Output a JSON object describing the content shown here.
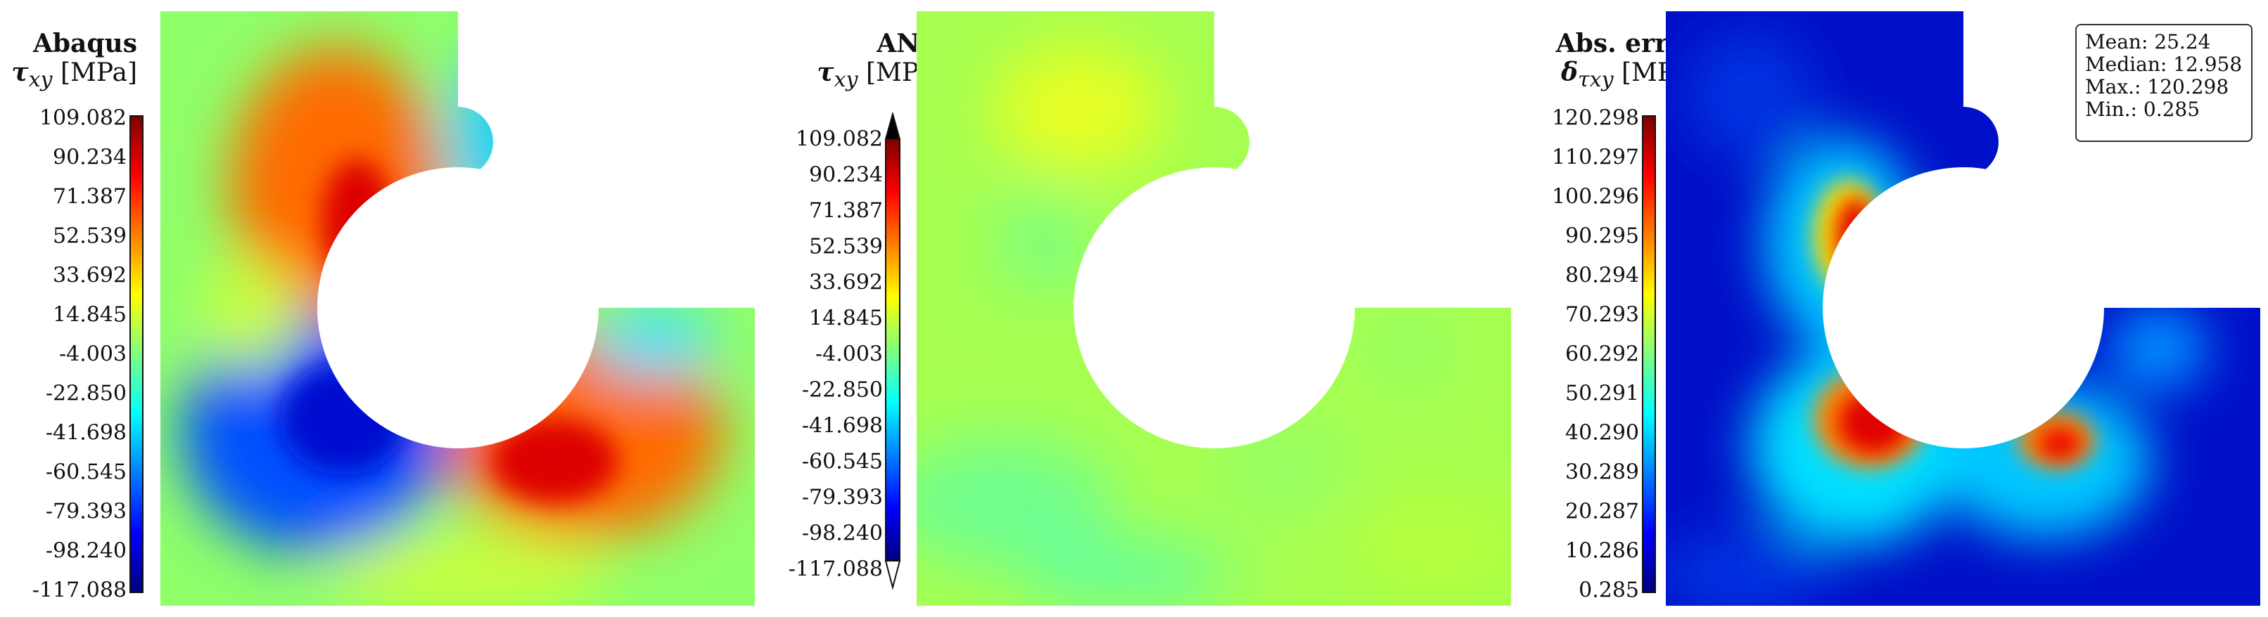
{
  "colors": {
    "jet": [
      "#00007f",
      "#0000ff",
      "#007fff",
      "#00ffff",
      "#7fff7f",
      "#ffff00",
      "#ff7f00",
      "#ff0000",
      "#7f0000"
    ]
  },
  "panels": [
    {
      "id": "abaqus",
      "title_line1": "Abaqus",
      "title_var": "τ",
      "title_sub": "xy",
      "title_unit": "[MPa]",
      "ticks": [
        "109.082",
        "90.234",
        "71.387",
        "52.539",
        "33.692",
        "14.845",
        "-4.003",
        "-22.850",
        "-41.698",
        "-60.545",
        "-79.393",
        "-98.240",
        "-117.088"
      ]
    },
    {
      "id": "ann",
      "title_line1": "ANN",
      "title_var": "τ",
      "title_sub": "xy",
      "title_unit": "[MPa]",
      "ticks": [
        "109.082",
        "90.234",
        "71.387",
        "52.539",
        "33.692",
        "14.845",
        "-4.003",
        "-22.850",
        "-41.698",
        "-60.545",
        "-79.393",
        "-98.240",
        "-117.088"
      ]
    },
    {
      "id": "error",
      "title_line1": "Abs. error",
      "title_var": "δ",
      "title_sub": "τxy",
      "title_unit": "[MPa]",
      "ticks": [
        "120.298",
        "110.297",
        "100.296",
        "90.295",
        "80.294",
        "70.293",
        "60.292",
        "50.291",
        "40.290",
        "30.289",
        "20.287",
        "10.286",
        "0.285"
      ]
    }
  ],
  "stats": {
    "mean": "Mean: 25.24",
    "median": "Median: 12.958",
    "max": "Max.: 120.298",
    "min": "Min.: 0.285"
  }
}
